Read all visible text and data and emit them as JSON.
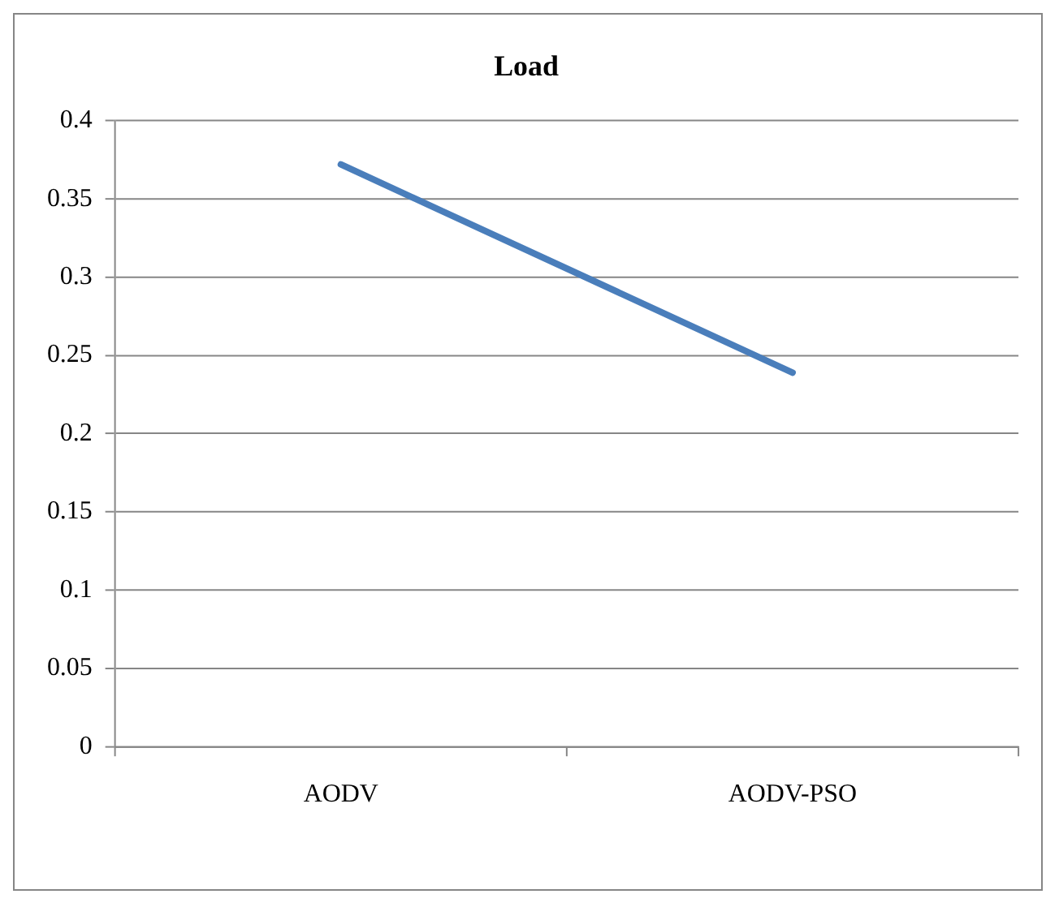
{
  "chart_data": {
    "type": "line",
    "title": "Load",
    "categories": [
      "AODV",
      "AODV-PSO"
    ],
    "series": [
      {
        "color": "#4a7ebb",
        "values": [
          0.372,
          0.239
        ]
      }
    ],
    "ylim": [
      0,
      0.4
    ],
    "yticks": [
      0,
      0.05,
      0.1,
      0.15,
      0.2,
      0.25,
      0.3,
      0.35,
      0.4
    ],
    "grid": "y",
    "legend": false,
    "marker": "none",
    "line_style": "solid"
  }
}
